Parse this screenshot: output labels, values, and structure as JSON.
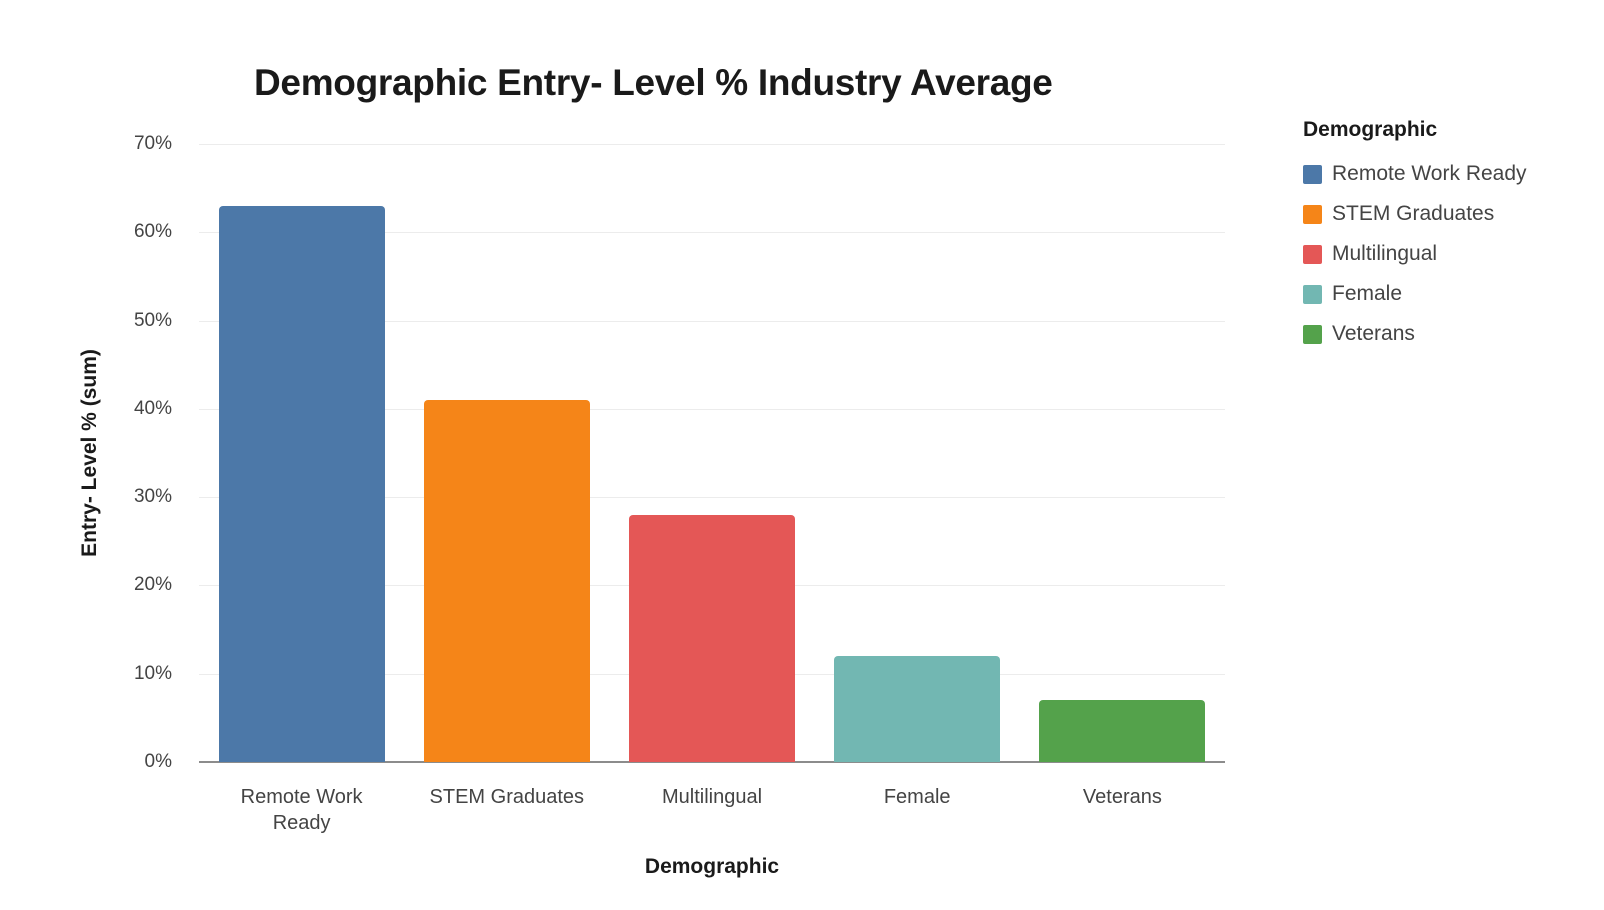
{
  "chart_data": {
    "type": "bar",
    "title": "Demographic Entry- Level % Industry Average",
    "xlabel": "Demographic",
    "ylabel": "Entry- Level % (sum)",
    "categories": [
      "Remote Work Ready",
      "STEM Graduates",
      "Multilingual",
      "Female",
      "Veterans"
    ],
    "values": [
      63,
      41,
      28,
      12,
      7
    ],
    "unit": "%",
    "ylim": [
      0,
      70
    ],
    "yticks": [
      "0%",
      "10%",
      "20%",
      "30%",
      "40%",
      "50%",
      "60%",
      "70%"
    ],
    "grid": true,
    "legend_position": "right",
    "legend_title": "Demographic",
    "colors": [
      "#4c78a8",
      "#f58518",
      "#e45756",
      "#72b7b2",
      "#54a24b"
    ]
  },
  "title": "Demographic Entry- Level % Industry Average",
  "axes": {
    "x_title": "Demographic",
    "y_title": "Entry- Level % (sum)",
    "y_ticks": [
      "0%",
      "10%",
      "20%",
      "30%",
      "40%",
      "50%",
      "60%",
      "70%"
    ],
    "x_ticks": [
      {
        "line1": "Remote Work",
        "line2": "Ready"
      },
      {
        "line1": "STEM Graduates",
        "line2": ""
      },
      {
        "line1": "Multilingual",
        "line2": ""
      },
      {
        "line1": "Female",
        "line2": ""
      },
      {
        "line1": "Veterans",
        "line2": ""
      }
    ]
  },
  "legend": {
    "title": "Demographic",
    "items": [
      {
        "label": "Remote Work Ready",
        "color": "#4c78a8"
      },
      {
        "label": "STEM Graduates",
        "color": "#f58518"
      },
      {
        "label": "Multilingual",
        "color": "#e45756"
      },
      {
        "label": "Female",
        "color": "#72b7b2"
      },
      {
        "label": "Veterans",
        "color": "#54a24b"
      }
    ]
  }
}
